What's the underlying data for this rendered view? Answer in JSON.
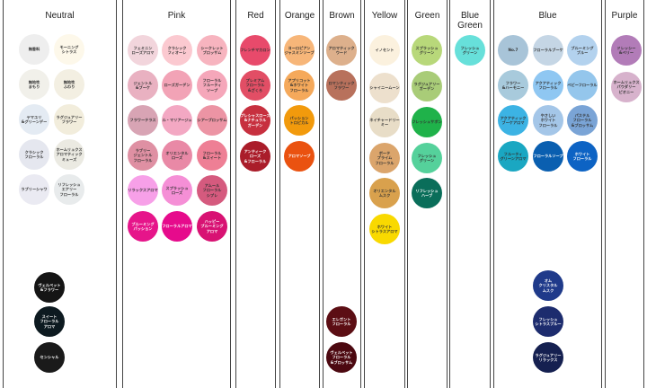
{
  "columns": [
    {
      "id": "neutral",
      "title": "Neutral",
      "items": [
        {
          "label": "無香料",
          "color": "#eeeeee",
          "text": "#333333"
        },
        {
          "label": "モーニング\nシトラス",
          "color": "#fdf8ea",
          "text": "#333333"
        },
        {
          "label": "無地性\nまもり",
          "color": "#f1f0ea",
          "text": "#333333"
        },
        {
          "label": "無地性\nふわり",
          "color": "#f3efe2",
          "text": "#333333"
        },
        {
          "label": "ヤマユリ\n&グリーンデー",
          "color": "#e4ebf3",
          "text": "#333333"
        },
        {
          "label": "ラグジュアリー\nフラワー",
          "color": "#f2eddc",
          "text": "#333333"
        },
        {
          "label": "クラシック\nフローラル",
          "color": "#e5e7ef",
          "text": "#333333"
        },
        {
          "label": "ホームリュクス\nアロマティック\nミューズ",
          "color": "#ebeae2",
          "text": "#333333"
        },
        {
          "label": "ラブリーシャワ",
          "color": "#eaeaf2",
          "text": "#333333"
        },
        {
          "label": "リフレッシュ\nエアリー\nフローラル",
          "color": "#e8ebec",
          "text": "#333333"
        },
        {
          "label": "ヴェルベット\n&フラワー",
          "color": "#151515",
          "text": "#ffffff"
        },
        {
          "label": "スイート\nフローラル\nアロマ",
          "color": "#0d1a20",
          "text": "#ffffff"
        },
        {
          "label": "センシャル",
          "color": "#1a1a1a",
          "text": "#ffffff"
        }
      ]
    },
    {
      "id": "pink",
      "title": "Pink",
      "items": [
        {
          "label": "フェミニン\nローズアロマ",
          "color": "#f2d5dc",
          "text": "#333333"
        },
        {
          "label": "クラシック\nフィオーレ",
          "color": "#fbc9d0",
          "text": "#333333"
        },
        {
          "label": "シークレット\nブロッサム",
          "color": "#f7b4bf",
          "text": "#333333"
        },
        {
          "label": "ジェントル\n&ブーケ",
          "color": "#e9b1c1",
          "text": "#333333"
        },
        {
          "label": "ローズガーデン",
          "color": "#f2a3b6",
          "text": "#333333"
        },
        {
          "label": "フローラル\nフルーティ\nソープ",
          "color": "#f5a7ba",
          "text": "#333333"
        },
        {
          "label": "フラワーテラス",
          "color": "#d8a4b4",
          "text": "#333333"
        },
        {
          "label": "ル・マリアージュ",
          "color": "#f3a8c3",
          "text": "#333333"
        },
        {
          "label": "シアーブロッサム",
          "color": "#ec94a4",
          "text": "#333333"
        },
        {
          "label": "ラブリー\nジェントル\nフローラル",
          "color": "#df90a3",
          "text": "#333333"
        },
        {
          "label": "オリエンタル\nローズ",
          "color": "#e989a6",
          "text": "#333333"
        },
        {
          "label": "フローラル\n&スイート",
          "color": "#ee7f95",
          "text": "#333333"
        },
        {
          "label": "リラックスアロマ",
          "color": "#f7a0e8",
          "text": "#333333"
        },
        {
          "label": "スプラッシュ\nローズ",
          "color": "#f58fd6",
          "text": "#333333"
        },
        {
          "label": "アムール\nフローラル\nシプレ",
          "color": "#d55a7e",
          "text": "#333333"
        },
        {
          "label": "ブルーミング\nパッション",
          "color": "#e6158a",
          "text": "#ffffff"
        },
        {
          "label": "フローラルアロマ",
          "color": "#e60b8c",
          "text": "#ffffff"
        },
        {
          "label": "ハッピー\nブルーミング\nアロマ",
          "color": "#d81273",
          "text": "#ffffff"
        }
      ]
    },
    {
      "id": "red",
      "title": "Red",
      "items": [
        {
          "label": "フレンチマカロン",
          "color": "#e84a6b",
          "text": "#333333"
        },
        {
          "label": "プレミアム\nフローラル\n&ざくろ",
          "color": "#e24e65",
          "text": "#333333"
        },
        {
          "label": "プレシャスローズ\n&ナチュラル\nガーデン",
          "color": "#c7303f",
          "text": "#ffffff"
        },
        {
          "label": "アンティーク\nローズ\n&フローラル",
          "color": "#aa1d2a",
          "text": "#ffffff"
        }
      ]
    },
    {
      "id": "orange",
      "title": "Orange",
      "items": [
        {
          "label": "ヨーロピアン\nジャスミンソープ",
          "color": "#f7b679",
          "text": "#333333"
        },
        {
          "label": "アプリコット\n&ホワイト\nフローラル",
          "color": "#f5a95b",
          "text": "#333333"
        },
        {
          "label": "パッション\nトロピカル",
          "color": "#f29a0c",
          "text": "#333333"
        },
        {
          "label": "アロマソープ",
          "color": "#ea5210",
          "text": "#ffffff"
        }
      ]
    },
    {
      "id": "brown",
      "title": "Brown",
      "items": [
        {
          "label": "アロマティック\nウード",
          "color": "#ddb08c",
          "text": "#333333"
        },
        {
          "label": "ロマンティック\nフラワー",
          "color": "#b8715c",
          "text": "#333333"
        },
        {
          "label": "エレガント\nフローラル",
          "color": "#5c0e14",
          "text": "#ffffff"
        },
        {
          "label": "ヴェルベット\nフローラル\n&ブロッサム",
          "color": "#4c0810",
          "text": "#ffffff"
        }
      ]
    },
    {
      "id": "yellow",
      "title": "Yellow",
      "items": [
        {
          "label": "イノセント",
          "color": "#fbf1de",
          "text": "#333333"
        },
        {
          "label": "シャイニームーン",
          "color": "#ede0cd",
          "text": "#333333"
        },
        {
          "label": "ネイチャードリーミー",
          "color": "#e8ddc7",
          "text": "#333333"
        },
        {
          "label": "ボーテ\nプライム\nフローラル",
          "color": "#dba56c",
          "text": "#333333"
        },
        {
          "label": "オリエンタル\nムスク",
          "color": "#d9a14d",
          "text": "#333333"
        },
        {
          "label": "ホワイト\nシトラスアロマ",
          "color": "#f9d900",
          "text": "#333333"
        }
      ]
    },
    {
      "id": "green",
      "title": "Green",
      "items": [
        {
          "label": "スプラッシュ\nグリーン",
          "color": "#b8d87a",
          "text": "#333333"
        },
        {
          "label": "ラグジュアリー\nガーデン",
          "color": "#a9cc78",
          "text": "#333333"
        },
        {
          "label": "フレッシュサボン",
          "color": "#1fb24a",
          "text": "#333333"
        },
        {
          "label": "フレッシュ\nグリーン",
          "color": "#55d19b",
          "text": "#333333"
        },
        {
          "label": "リフレッシュ\nハーブ",
          "color": "#0a6e5a",
          "text": "#ffffff"
        }
      ]
    },
    {
      "id": "bluegreen",
      "title": "Blue Green",
      "items": [
        {
          "label": "フレッシュ\nグリーン",
          "color": "#67e0da",
          "text": "#333333"
        }
      ]
    },
    {
      "id": "blue",
      "title": "Blue",
      "items": [
        {
          "label": "No.7",
          "color": "#a8c4d8",
          "text": "#333333"
        },
        {
          "label": "フローラルブーケ",
          "color": "#c5d6e5",
          "text": "#333333"
        },
        {
          "label": "ブルーミング\nブルー",
          "color": "#b3d2ee",
          "text": "#333333"
        },
        {
          "label": "フラワー\n&ハーモニー",
          "color": "#a8cadc",
          "text": "#333333"
        },
        {
          "label": "アクアティック\nフローラル",
          "color": "#8fc7f2",
          "text": "#333333"
        },
        {
          "label": "ベビーフローラル",
          "color": "#94c6ec",
          "text": "#333333"
        },
        {
          "label": "アクアティック\nブーケアロマ",
          "color": "#3cb3e4",
          "text": "#333333"
        },
        {
          "label": "やさしい\nホワイト\nフローラル",
          "color": "#a4c6e8",
          "text": "#333333"
        },
        {
          "label": "パステル\nフローラル\n&ブロッサム",
          "color": "#7aa4d6",
          "text": "#333333"
        },
        {
          "label": "フルーティ\nグリーンアロマ",
          "color": "#1aa7c2",
          "text": "#333333"
        },
        {
          "label": "フローラルソープ",
          "color": "#0a5fb0",
          "text": "#ffffff"
        },
        {
          "label": "ホワイト\nフローラル",
          "color": "#0d63c4",
          "text": "#ffffff"
        },
        {
          "label": "オム\nクリスタル\nムスク",
          "color": "#1f3a8a",
          "text": "#ffffff"
        },
        {
          "label": "フレッシュ\nシトラスブルー",
          "color": "#1d2c6e",
          "text": "#ffffff"
        },
        {
          "label": "ラグジュアリー\nリラックス",
          "color": "#152050",
          "text": "#ffffff"
        }
      ]
    },
    {
      "id": "purple",
      "title": "Purple",
      "items": [
        {
          "label": "ドレッシー\n&ベリー",
          "color": "#b27cb8",
          "text": "#333333"
        },
        {
          "label": "ホームリュクス\nパウダリー\nピオニー",
          "color": "#d7b2cc",
          "text": "#333333"
        }
      ]
    }
  ]
}
